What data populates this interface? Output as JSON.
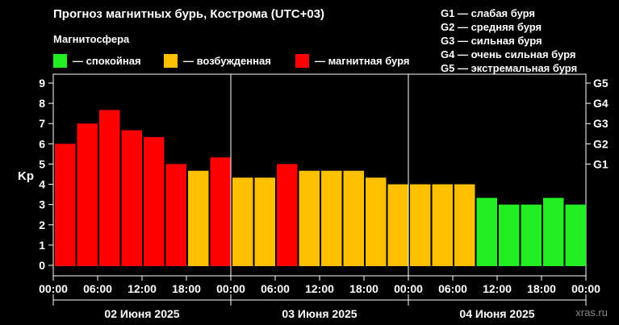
{
  "title": "Прогноз магнитных бурь, Кострома (UTC+03)",
  "subtitle": "Магнитосфера",
  "legend": [
    {
      "label": "— спокойная",
      "color": "#22ee22"
    },
    {
      "label": "— возбужденная",
      "color": "#ffc000"
    },
    {
      "label": "— магнитная буря",
      "color": "#ff0000"
    }
  ],
  "storm_levels": [
    "G1 — слабая буря",
    "G2 — средняя буря",
    "G3 — сильная буря",
    "G4 — очень сильная буря",
    "G5 — экстремальная буря"
  ],
  "watermark": "xras.ru",
  "chart_data": {
    "type": "bar",
    "ylabel": "Kp",
    "ylim": [
      0,
      9
    ],
    "yticks": [
      0,
      1,
      2,
      3,
      4,
      5,
      6,
      7,
      8,
      9
    ],
    "right_ticks": [
      {
        "value": 5,
        "label": "G1"
      },
      {
        "value": 6,
        "label": "G2"
      },
      {
        "value": 7,
        "label": "G3"
      },
      {
        "value": 8,
        "label": "G4"
      },
      {
        "value": 9,
        "label": "G5"
      }
    ],
    "xtick_labels": [
      "00:00",
      "06:00",
      "12:00",
      "18:00",
      "00:00",
      "06:00",
      "12:00",
      "18:00",
      "00:00",
      "06:00",
      "12:00",
      "18:00",
      "00:00"
    ],
    "days": [
      "02 Июня 2025",
      "03 Июня 2025",
      "04 Июня 2025"
    ],
    "bars_per_day": 8,
    "values": [
      6.0,
      7.0,
      7.67,
      6.67,
      6.33,
      5.0,
      4.67,
      5.33,
      4.33,
      4.33,
      5.0,
      4.67,
      4.67,
      4.67,
      4.33,
      4.0,
      4.0,
      4.0,
      4.0,
      3.33,
      3.0,
      3.0,
      3.33,
      3.0
    ],
    "colors": [
      "#ff0000",
      "#ff0000",
      "#ff0000",
      "#ff0000",
      "#ff0000",
      "#ff0000",
      "#ffc000",
      "#ff0000",
      "#ffc000",
      "#ffc000",
      "#ff0000",
      "#ffc000",
      "#ffc000",
      "#ffc000",
      "#ffc000",
      "#ffc000",
      "#ffc000",
      "#ffc000",
      "#ffc000",
      "#22ee22",
      "#22ee22",
      "#22ee22",
      "#22ee22",
      "#22ee22"
    ]
  }
}
